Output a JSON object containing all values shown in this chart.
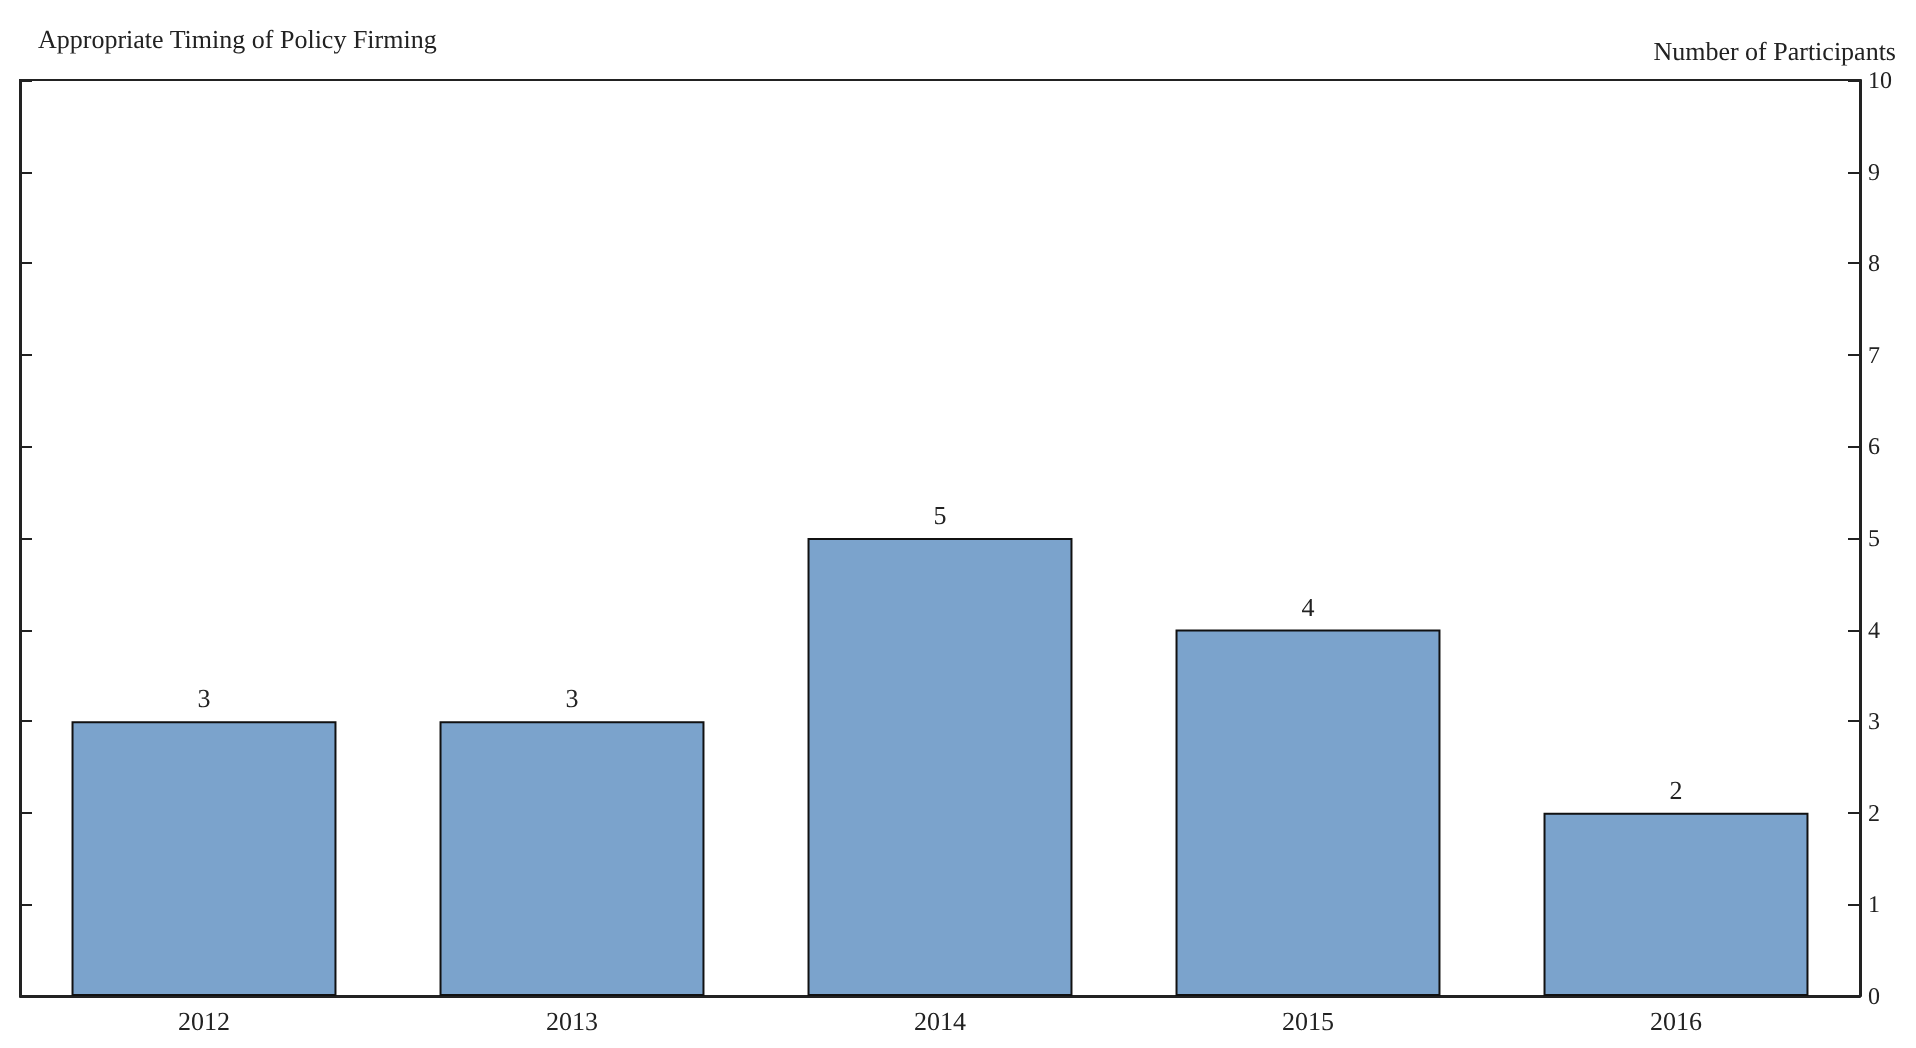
{
  "chart_data": {
    "type": "bar",
    "title": "Appropriate Timing of Policy Firming",
    "ylabel": "Number of Participants",
    "categories": [
      "2012",
      "2013",
      "2014",
      "2015",
      "2016"
    ],
    "values": [
      3,
      3,
      5,
      4,
      2
    ],
    "color": "#7ba3cc",
    "ylim": [
      0,
      10
    ],
    "yticks": [
      0,
      1,
      2,
      3,
      4,
      5,
      6,
      7,
      8,
      9,
      10
    ],
    "data_labels": true,
    "grid": false
  }
}
